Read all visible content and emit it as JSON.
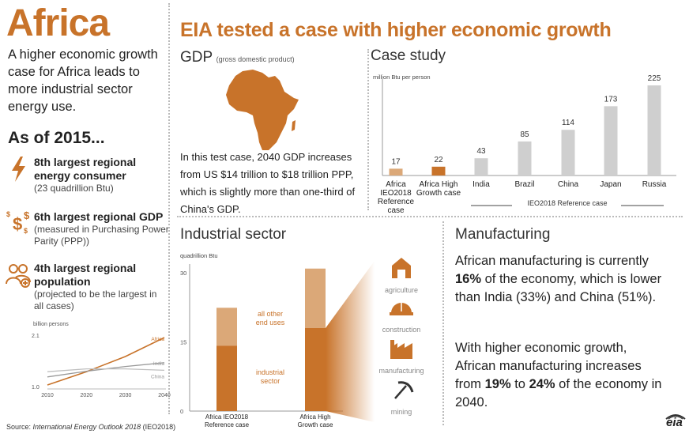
{
  "left": {
    "title": "Africa",
    "intro": "A higher economic growth case for Africa leads to more industrial sector energy use.",
    "as_of": "As of 2015...",
    "stats": [
      {
        "title": "8th largest regional energy consumer",
        "sub": "(23 quadrillion Btu)",
        "icon": "lightning-icon"
      },
      {
        "title": "6th largest regional GDP",
        "sub": "(measured in Purchasing Power Parity (PPP))",
        "icon": "dollar-signs-icon"
      },
      {
        "title": "4th largest regional population",
        "sub": "(projected to be the largest in all cases)",
        "icon": "people-icon"
      }
    ],
    "population_chart_unit": "billion persons",
    "source_prefix": "Source: ",
    "source_italic": "International Energy Outlook 2018",
    "source_suffix": " (IEO2018)"
  },
  "main_title": "EIA tested a case with higher economic growth",
  "gdp": {
    "title": "GDP",
    "title_note": "(gross domestic product)",
    "text": "In this test case, 2040 GDP increases from US $14 trillion to $18 trillion PPP, which is slightly more than one-third of China's GDP."
  },
  "case_study": {
    "title": "Case study",
    "group_label": "IEO2018 Reference case"
  },
  "industrial": {
    "title": "Industrial sector"
  },
  "manufacturing": {
    "title": "Manufacturing",
    "p1_a": "African manufacturing is currently ",
    "p1_b": "16%",
    "p1_c": " of the economy, which is lower than India (33%) and China (51%).",
    "p2_a": "With higher economic growth, African manufacturing increases from ",
    "p2_b": "19%",
    "p2_c": " to ",
    "p2_d": "24%",
    "p2_e": " of the economy in 2040."
  },
  "logo": "eia",
  "colors": {
    "orange": "#c8732a",
    "light_orange": "#dba878",
    "gray": "#cfcfcf",
    "dark_gray": "#777777"
  },
  "chart_data": [
    {
      "type": "line",
      "ylabel": "billion persons",
      "x": [
        2010,
        2020,
        2030,
        2040
      ],
      "ylim": [
        1.0,
        2.1
      ],
      "yticks": [
        "2.1",
        "1.0"
      ],
      "series": [
        {
          "name": "Africa",
          "values": [
            1.05,
            1.33,
            1.65,
            2.05
          ]
        },
        {
          "name": "India",
          "values": [
            1.22,
            1.34,
            1.44,
            1.52
          ]
        },
        {
          "name": "China",
          "values": [
            1.33,
            1.39,
            1.39,
            1.36
          ]
        }
      ]
    },
    {
      "type": "bar",
      "ylabel": "million Btu per person",
      "categories": [
        "Africa IEO2018 Reference case",
        "Africa High Growth case",
        "India",
        "Brazil",
        "China",
        "Japan",
        "Russia"
      ],
      "values": [
        17,
        22,
        43,
        85,
        114,
        173,
        225
      ],
      "ylim": [
        0,
        225
      ]
    },
    {
      "type": "bar",
      "stacked": true,
      "ylabel": "quadrillion Btu",
      "categories": [
        "Africa IEO2018 Reference case",
        "Africa High Growth case"
      ],
      "yticks": [
        0,
        15,
        30
      ],
      "ylim": [
        0,
        30
      ],
      "series": [
        {
          "name": "industrial sector",
          "values": [
            14.2,
            18.0
          ]
        },
        {
          "name": "all other end uses",
          "values": [
            8.2,
            12.9
          ]
        }
      ],
      "icon_labels": [
        "agriculture",
        "construction",
        "manufacturing",
        "mining"
      ]
    }
  ]
}
